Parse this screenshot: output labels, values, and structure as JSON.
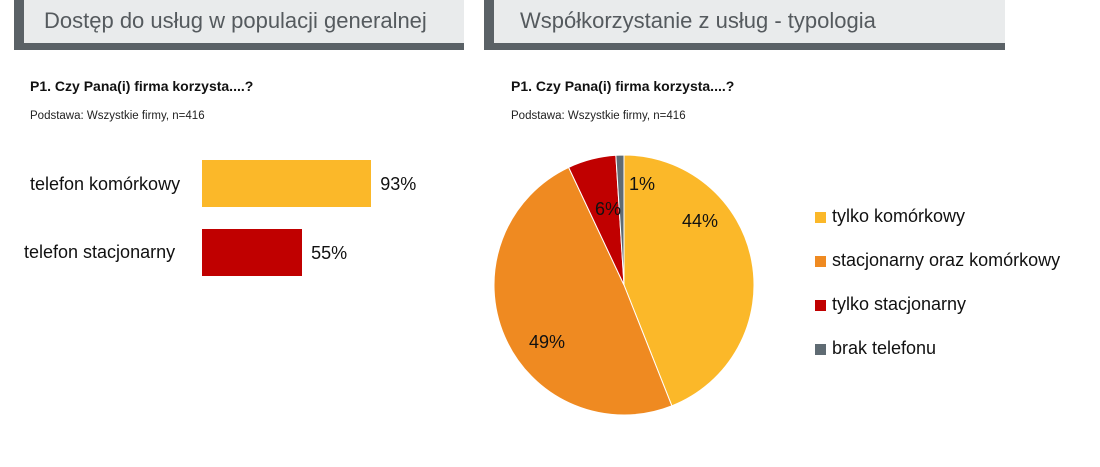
{
  "left_panel": {
    "header_title": "Dostęp do usług w populacji generalnej",
    "question": "P1. Czy Pana(i) firma korzysta....?",
    "base": "Podstawa: Wszystkie firmy, n=416"
  },
  "right_panel": {
    "header_title": "Współkorzystanie z usług - typologia",
    "question": "P1. Czy Pana(i) firma korzysta....?",
    "base": "Podstawa: Wszystkie firmy, n=416"
  },
  "chart_data": [
    {
      "type": "bar",
      "orientation": "horizontal",
      "categories": [
        "telefon komórkowy",
        "telefon stacjonarny"
      ],
      "values": [
        93,
        55
      ],
      "value_labels": [
        "93%",
        "55%"
      ],
      "colors": [
        "#fbb829",
        "#c00000"
      ],
      "xlim": [
        0,
        100
      ],
      "grid": false
    },
    {
      "type": "pie",
      "labels": [
        "tylko komórkowy",
        "stacjonarny oraz komórkowy",
        "tylko stacjonarny",
        "brak telefonu"
      ],
      "values": [
        44,
        49,
        6,
        1
      ],
      "value_labels": [
        "44%",
        "49%",
        "6%",
        "1%"
      ],
      "colors": [
        "#fbb829",
        "#ef8a21",
        "#c00000",
        "#5f6b73"
      ],
      "legend_position": "right"
    }
  ]
}
